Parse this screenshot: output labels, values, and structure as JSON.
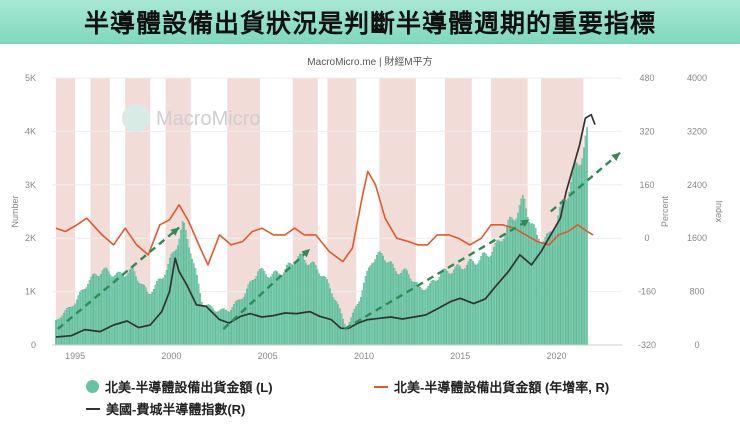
{
  "title": "半導體設備出貨狀況是判斷半導體週期的重要指標",
  "source": "MacroMicro.me | 財經M平方",
  "watermark": "MacroMicro",
  "legend": {
    "item1": "北美-半導體設備出貨金額 (L)",
    "item2": "北美-半導體設備出貨金額 (年增率, R)",
    "item3": "美國-費城半導體指數(R)"
  },
  "colors": {
    "bars": "#7ed6b6",
    "bar_edge": "#3f9f7c",
    "yoy_line": "#e05a2c",
    "index_line": "#333333",
    "recession_band": "#f2dcd8",
    "trend_arrow": "#2e8b57"
  },
  "chart_data": {
    "type": "bar+line",
    "x_ticks": [
      "1995",
      "2000",
      "2005",
      "2010",
      "2015",
      "2020"
    ],
    "left_axis": {
      "label": "Number",
      "range": [
        0,
        5000
      ],
      "ticks": [
        "0",
        "1K",
        "2K",
        "3K",
        "4K",
        "5K"
      ]
    },
    "right_axis_1": {
      "label": "Percent",
      "range": [
        -320,
        480
      ],
      "ticks": [
        "-320",
        "-160",
        "0",
        "160",
        "320",
        "480"
      ]
    },
    "right_axis_2": {
      "label": "Index",
      "range": [
        0,
        4000
      ],
      "ticks": [
        "0",
        "800",
        "1600",
        "2400",
        "3200",
        "4000"
      ]
    },
    "shaded_periods": [
      [
        1994.0,
        1995.0
      ],
      [
        1995.8,
        1996.8
      ],
      [
        1997.6,
        1998.9
      ],
      [
        1999.7,
        2001.0
      ],
      [
        2002.9,
        2004.6
      ],
      [
        2006.3,
        2007.6
      ],
      [
        2008.1,
        2009.6
      ],
      [
        2010.8,
        2012.7
      ],
      [
        2014.2,
        2015.6
      ],
      [
        2016.6,
        2018.5
      ],
      [
        2019.2,
        2021.4
      ]
    ],
    "series": [
      {
        "name": "北美-半導體設備出貨金額 (L)",
        "axis": "left",
        "style": "bar",
        "points": [
          [
            1994.0,
            450
          ],
          [
            1995.0,
            800
          ],
          [
            1995.7,
            1200
          ],
          [
            1996.4,
            1400
          ],
          [
            1997.3,
            1300
          ],
          [
            1998.0,
            1400
          ],
          [
            1998.8,
            950
          ],
          [
            1999.5,
            1250
          ],
          [
            2000.1,
            1700
          ],
          [
            2000.6,
            2250
          ],
          [
            2001.0,
            1800
          ],
          [
            2001.6,
            800
          ],
          [
            2002.3,
            650
          ],
          [
            2003.0,
            650
          ],
          [
            2003.8,
            950
          ],
          [
            2004.5,
            1400
          ],
          [
            2005.2,
            1300
          ],
          [
            2005.9,
            1400
          ],
          [
            2006.6,
            1650
          ],
          [
            2007.2,
            1550
          ],
          [
            2007.9,
            1300
          ],
          [
            2008.6,
            800
          ],
          [
            2009.1,
            300
          ],
          [
            2009.8,
            900
          ],
          [
            2010.4,
            1600
          ],
          [
            2011.0,
            1700
          ],
          [
            2011.6,
            1400
          ],
          [
            2012.3,
            1350
          ],
          [
            2012.9,
            1050
          ],
          [
            2013.4,
            1100
          ],
          [
            2014.0,
            1350
          ],
          [
            2014.6,
            1400
          ],
          [
            2015.3,
            1500
          ],
          [
            2016.0,
            1600
          ],
          [
            2016.8,
            1800
          ],
          [
            2017.6,
            2300
          ],
          [
            2018.3,
            2700
          ],
          [
            2019.0,
            2000
          ],
          [
            2019.6,
            2000
          ],
          [
            2020.3,
            2600
          ],
          [
            2021.0,
            3300
          ],
          [
            2021.6,
            3900
          ]
        ]
      },
      {
        "name": "北美-半導體設備出貨金額 (年增率, R)",
        "axis": "percent",
        "style": "line",
        "points": [
          [
            1994.0,
            30
          ],
          [
            1994.5,
            20
          ],
          [
            1995.1,
            40
          ],
          [
            1995.6,
            60
          ],
          [
            1996.4,
            10
          ],
          [
            1997.0,
            -20
          ],
          [
            1997.6,
            30
          ],
          [
            1998.2,
            -20
          ],
          [
            1998.8,
            -50
          ],
          [
            1999.4,
            40
          ],
          [
            1999.9,
            55
          ],
          [
            2000.4,
            100
          ],
          [
            2000.9,
            50
          ],
          [
            2001.5,
            -30
          ],
          [
            2001.9,
            -80
          ],
          [
            2002.5,
            10
          ],
          [
            2003.1,
            -20
          ],
          [
            2003.7,
            -10
          ],
          [
            2004.2,
            20
          ],
          [
            2004.7,
            30
          ],
          [
            2005.3,
            10
          ],
          [
            2005.9,
            10
          ],
          [
            2006.4,
            30
          ],
          [
            2006.9,
            10
          ],
          [
            2007.5,
            10
          ],
          [
            2008.2,
            -40
          ],
          [
            2008.9,
            -70
          ],
          [
            2009.4,
            -30
          ],
          [
            2009.9,
            120
          ],
          [
            2010.2,
            200
          ],
          [
            2010.6,
            160
          ],
          [
            2011.1,
            60
          ],
          [
            2011.7,
            0
          ],
          [
            2012.3,
            -10
          ],
          [
            2012.8,
            -20
          ],
          [
            2013.3,
            -20
          ],
          [
            2013.8,
            10
          ],
          [
            2014.4,
            10
          ],
          [
            2014.9,
            0
          ],
          [
            2015.5,
            -20
          ],
          [
            2016.1,
            0
          ],
          [
            2016.6,
            40
          ],
          [
            2017.2,
            40
          ],
          [
            2017.8,
            30
          ],
          [
            2018.4,
            10
          ],
          [
            2019.0,
            -10
          ],
          [
            2019.6,
            -20
          ],
          [
            2020.1,
            10
          ],
          [
            2020.6,
            20
          ],
          [
            2021.1,
            40
          ],
          [
            2021.6,
            20
          ],
          [
            2021.9,
            10
          ]
        ]
      },
      {
        "name": "美國-費城半導體指數(R)",
        "axis": "index",
        "style": "line",
        "points": [
          [
            1994.0,
            120
          ],
          [
            1994.8,
            140
          ],
          [
            1995.5,
            230
          ],
          [
            1996.3,
            200
          ],
          [
            1997.0,
            300
          ],
          [
            1997.7,
            360
          ],
          [
            1998.3,
            260
          ],
          [
            1998.9,
            300
          ],
          [
            1999.5,
            500
          ],
          [
            1999.9,
            800
          ],
          [
            2000.2,
            1300
          ],
          [
            2000.4,
            1100
          ],
          [
            2000.8,
            900
          ],
          [
            2001.3,
            600
          ],
          [
            2001.8,
            580
          ],
          [
            2002.5,
            380
          ],
          [
            2003.0,
            330
          ],
          [
            2003.6,
            430
          ],
          [
            2004.1,
            470
          ],
          [
            2004.7,
            420
          ],
          [
            2005.3,
            440
          ],
          [
            2005.9,
            480
          ],
          [
            2006.5,
            470
          ],
          [
            2007.2,
            500
          ],
          [
            2007.7,
            430
          ],
          [
            2008.3,
            380
          ],
          [
            2008.8,
            250
          ],
          [
            2009.2,
            250
          ],
          [
            2009.7,
            330
          ],
          [
            2010.2,
            380
          ],
          [
            2010.8,
            400
          ],
          [
            2011.4,
            420
          ],
          [
            2012.0,
            390
          ],
          [
            2012.6,
            420
          ],
          [
            2013.2,
            450
          ],
          [
            2013.8,
            540
          ],
          [
            2014.5,
            650
          ],
          [
            2015.0,
            700
          ],
          [
            2015.7,
            620
          ],
          [
            2016.3,
            690
          ],
          [
            2016.9,
            900
          ],
          [
            2017.5,
            1100
          ],
          [
            2018.1,
            1350
          ],
          [
            2018.7,
            1200
          ],
          [
            2019.2,
            1400
          ],
          [
            2019.7,
            1650
          ],
          [
            2020.2,
            1900
          ],
          [
            2020.5,
            2300
          ],
          [
            2020.9,
            2700
          ],
          [
            2021.2,
            3000
          ],
          [
            2021.5,
            3400
          ],
          [
            2021.8,
            3450
          ],
          [
            2022.0,
            3300
          ]
        ]
      }
    ],
    "annotations": [
      {
        "type": "trend_arrow",
        "from": [
          1994.1,
          300
        ],
        "to": [
          2000.4,
          2200
        ]
      },
      {
        "type": "trend_arrow",
        "from": [
          2002.7,
          300
        ],
        "to": [
          2007.2,
          1800
        ]
      },
      {
        "type": "trend_arrow",
        "from": [
          2009.0,
          300
        ],
        "to": [
          2018.6,
          2350
        ]
      },
      {
        "type": "trend_arrow",
        "from": [
          2019.7,
          2500
        ],
        "to": [
          2023.3,
          3600
        ]
      }
    ]
  }
}
